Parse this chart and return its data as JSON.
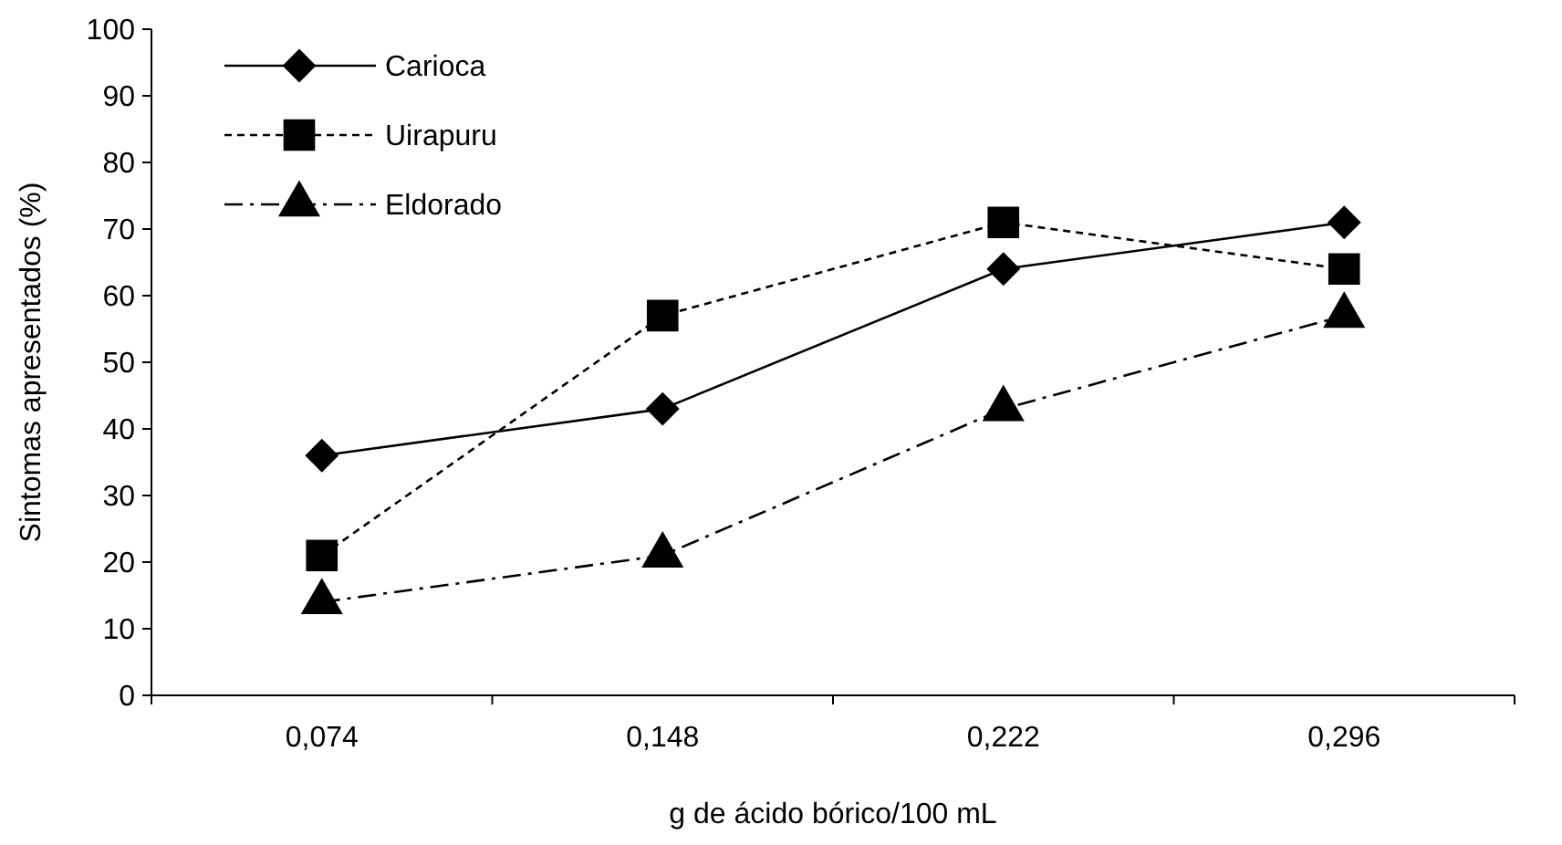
{
  "chart_data": {
    "type": "line",
    "xlabel": "g de ácido bórico/100 mL",
    "ylabel": "Sintomas apresentados  (%)",
    "categories": [
      "0,074",
      "0,148",
      "0,222",
      "0,296"
    ],
    "ylim": [
      0,
      100
    ],
    "yticks": [
      0,
      10,
      20,
      30,
      40,
      50,
      60,
      70,
      80,
      90,
      100
    ],
    "grid": false,
    "legend": "top left",
    "series": [
      {
        "name": "Carioca",
        "color": "#000000",
        "marker": "diamond",
        "line_style": "solid",
        "values": [
          36,
          43,
          64,
          71
        ]
      },
      {
        "name": "Uirapuru",
        "color": "#000000",
        "marker": "square",
        "line_style": "dashed",
        "values": [
          21,
          57,
          71,
          64
        ]
      },
      {
        "name": "Eldorado",
        "color": "#000000",
        "marker": "triangle",
        "line_style": "dashdot",
        "values": [
          14,
          21,
          43,
          57
        ]
      }
    ]
  }
}
